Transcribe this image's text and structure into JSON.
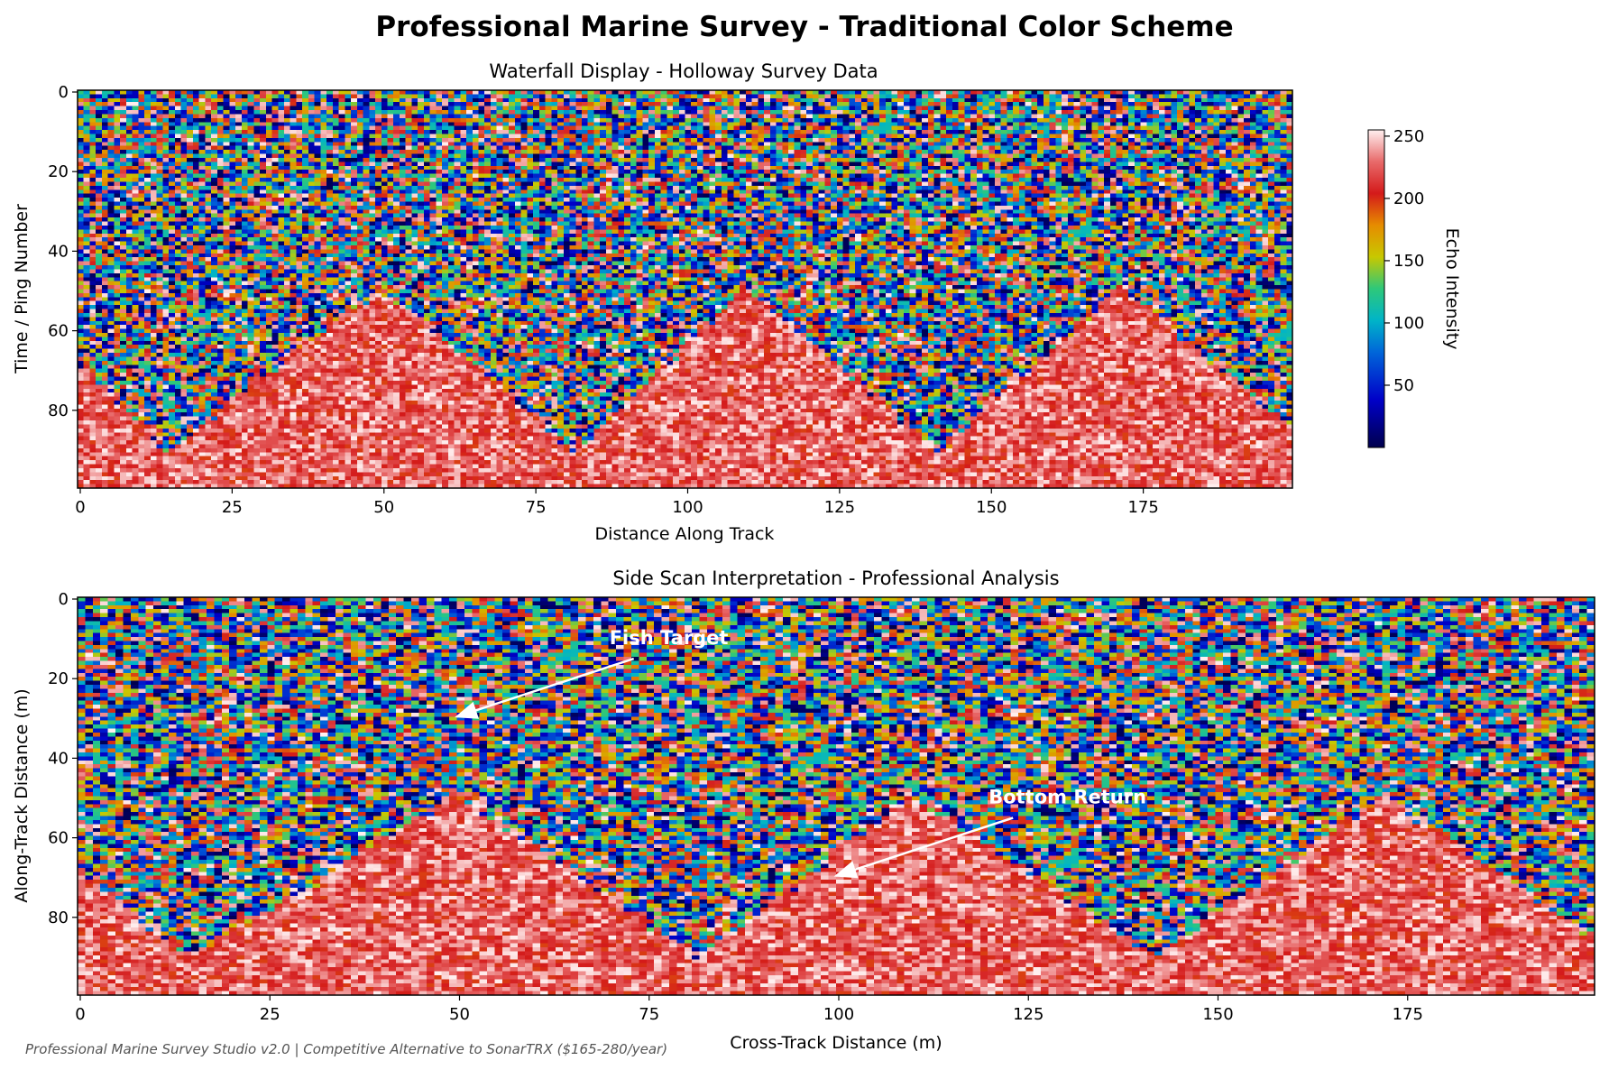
{
  "figure": {
    "title": "Professional Marine Survey - Traditional Color Scheme",
    "footer": "Professional Marine Survey Studio v2.0 | Competitive Alternative to SonarTRX ($165-280/year)"
  },
  "colors": {
    "colormap_stops": [
      [
        0.0,
        "#00004d"
      ],
      [
        0.15,
        "#0000c8"
      ],
      [
        0.3,
        "#0066d9"
      ],
      [
        0.4,
        "#00b4c8"
      ],
      [
        0.5,
        "#2ec87a"
      ],
      [
        0.6,
        "#c8c800"
      ],
      [
        0.7,
        "#e68c00"
      ],
      [
        0.8,
        "#d41a1a"
      ],
      [
        0.9,
        "#e86a6a"
      ],
      [
        1.0,
        "#fff0f0"
      ]
    ],
    "annotation": "#ffffff"
  },
  "chart_data": [
    {
      "type": "heatmap",
      "title": "Waterfall Display - Holloway Survey Data",
      "xlabel": "Distance Along Track",
      "ylabel": "Time / Ping Number",
      "xlim": [
        0,
        200
      ],
      "ylim": [
        100,
        0
      ],
      "xticks": [
        0,
        25,
        50,
        75,
        100,
        125,
        150,
        175
      ],
      "yticks": [
        0,
        20,
        40,
        60,
        80
      ],
      "grid_shape": [
        100,
        200
      ],
      "noise_value_range": [
        0,
        255
      ],
      "bottom_value_range": [
        195,
        255
      ],
      "bottom_profile": {
        "description": "bottom boundary depth (ping) across distance",
        "x": [
          0,
          15,
          50,
          82,
          110,
          142,
          172,
          200
        ],
        "y": [
          68,
          90,
          49,
          90,
          49,
          90,
          49,
          85
        ]
      },
      "colorbar": {
        "label": "Echo Intensity",
        "range": [
          0,
          255
        ],
        "ticks": [
          50,
          100,
          150,
          200,
          250
        ]
      },
      "grid": false
    },
    {
      "type": "heatmap",
      "title": "Side Scan Interpretation - Professional Analysis",
      "xlabel": "Cross-Track Distance (m)",
      "ylabel": "Along-Track Distance (m)",
      "xlim": [
        0,
        200
      ],
      "ylim": [
        100,
        0
      ],
      "xticks": [
        0,
        25,
        50,
        75,
        100,
        125,
        150,
        175
      ],
      "yticks": [
        0,
        20,
        40,
        60,
        80
      ],
      "grid_shape": [
        100,
        200
      ],
      "noise_value_range": [
        0,
        255
      ],
      "bottom_value_range": [
        195,
        255
      ],
      "bottom_profile": {
        "description": "bottom boundary depth across cross-track distance",
        "x": [
          0,
          15,
          50,
          82,
          110,
          142,
          172,
          200
        ],
        "y": [
          68,
          90,
          49,
          90,
          49,
          90,
          49,
          85
        ]
      },
      "annotations": [
        {
          "text": "Fish Target",
          "x": 50,
          "y": 30,
          "text_x": 70,
          "text_y": 10
        },
        {
          "text": "Bottom Return",
          "x": 100,
          "y": 70,
          "text_x": 120,
          "text_y": 50
        }
      ],
      "grid": false
    }
  ]
}
